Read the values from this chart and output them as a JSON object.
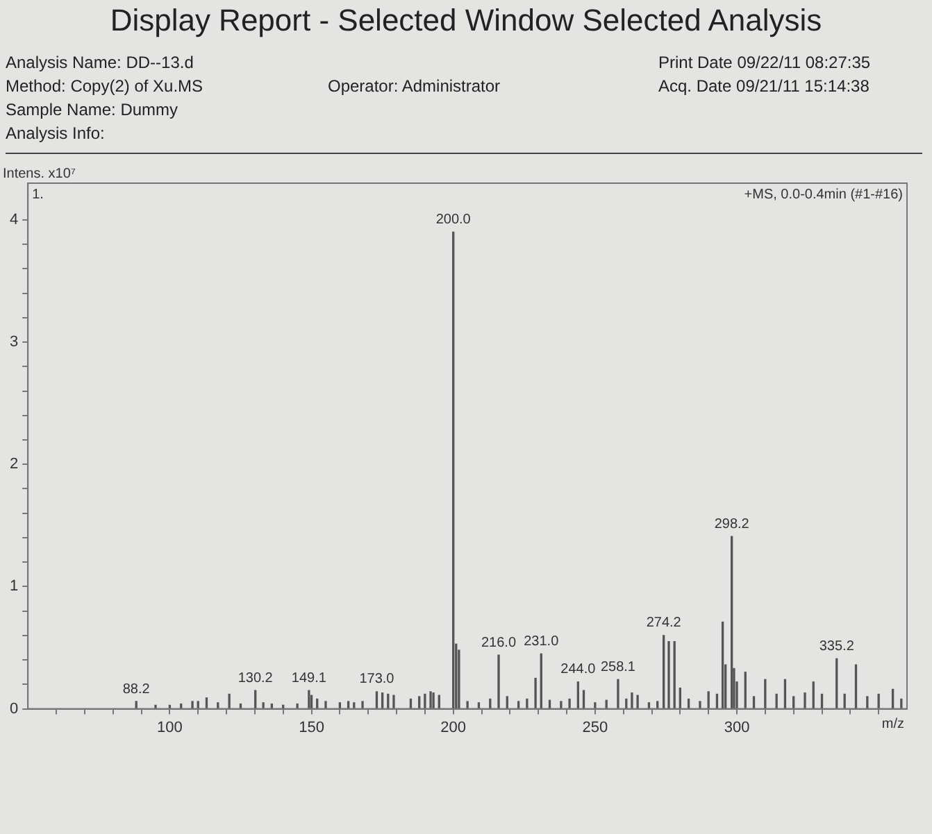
{
  "chart_data": {
    "type": "bar",
    "title": "Display Report - Selected Window Selected Analysis",
    "xlabel": "m/z",
    "ylabel": "Intens. x10⁷",
    "color": "#555555",
    "x": [
      88.2,
      95,
      100,
      104,
      108,
      110,
      113,
      117,
      121,
      125,
      130.2,
      133,
      136,
      140,
      145,
      149.1,
      150,
      152,
      155,
      160,
      163,
      165,
      168,
      173.0,
      175,
      177,
      179,
      185,
      188,
      190,
      192,
      193,
      195,
      200.0,
      201,
      202,
      205,
      209,
      213,
      216.0,
      219,
      223,
      226,
      229,
      231.0,
      234,
      238,
      241,
      244.0,
      246,
      250,
      254,
      258.1,
      261,
      263,
      265,
      269,
      272,
      274.2,
      276,
      278,
      280,
      283,
      287,
      290,
      293,
      295,
      296,
      298.2,
      299,
      300,
      303,
      306,
      310,
      314,
      317,
      320,
      324,
      327,
      330,
      335.2,
      338,
      342,
      346,
      350,
      355,
      358
    ],
    "values": [
      0.06,
      0.03,
      0.03,
      0.04,
      0.06,
      0.06,
      0.09,
      0.05,
      0.12,
      0.04,
      0.15,
      0.05,
      0.04,
      0.03,
      0.04,
      0.15,
      0.11,
      0.08,
      0.06,
      0.05,
      0.06,
      0.05,
      0.06,
      0.14,
      0.13,
      0.12,
      0.11,
      0.08,
      0.1,
      0.12,
      0.14,
      0.13,
      0.11,
      3.9,
      0.53,
      0.48,
      0.06,
      0.05,
      0.08,
      0.44,
      0.1,
      0.06,
      0.08,
      0.25,
      0.45,
      0.07,
      0.06,
      0.08,
      0.22,
      0.15,
      0.05,
      0.07,
      0.24,
      0.08,
      0.13,
      0.11,
      0.05,
      0.06,
      0.6,
      0.55,
      0.55,
      0.17,
      0.08,
      0.06,
      0.14,
      0.12,
      0.71,
      0.36,
      1.41,
      0.33,
      0.22,
      0.3,
      0.1,
      0.24,
      0.12,
      0.24,
      0.1,
      0.13,
      0.22,
      0.12,
      0.41,
      0.12,
      0.36,
      0.1,
      0.12,
      0.16,
      0.08
    ],
    "xlim": [
      50,
      360
    ],
    "xticks": [
      {
        "value": 60,
        "label": null
      },
      {
        "value": 70,
        "label": null
      },
      {
        "value": 80,
        "label": null
      },
      {
        "value": 90,
        "label": null
      },
      100,
      {
        "value": 110,
        "label": null
      },
      {
        "value": 120,
        "label": null
      },
      {
        "value": 130,
        "label": null
      },
      {
        "value": 140,
        "label": null
      },
      150,
      {
        "value": 160,
        "label": null
      },
      {
        "value": 170,
        "label": null
      },
      {
        "value": 180,
        "label": null
      },
      {
        "value": 190,
        "label": null
      },
      200,
      {
        "value": 210,
        "label": null
      },
      {
        "value": 220,
        "label": null
      },
      {
        "value": 230,
        "label": null
      },
      {
        "value": 240,
        "label": null
      },
      250,
      {
        "value": 260,
        "label": null
      },
      {
        "value": 270,
        "label": null
      },
      {
        "value": 280,
        "label": null
      },
      {
        "value": 290,
        "label": null
      },
      300,
      {
        "value": 310,
        "label": null
      },
      {
        "value": 320,
        "label": null
      },
      {
        "value": 330,
        "label": null
      },
      {
        "value": 340,
        "label": null
      },
      {
        "value": 350,
        "label": null
      }
    ],
    "ylim": [
      0,
      4.3
    ],
    "yticks": [
      0,
      {
        "value": 0.2,
        "label": null
      },
      {
        "value": 0.4,
        "label": null
      },
      {
        "value": 0.6,
        "label": null
      },
      {
        "value": 0.8,
        "label": null
      },
      1,
      {
        "value": 1.2,
        "label": null
      },
      {
        "value": 1.4,
        "label": null
      },
      {
        "value": 1.6,
        "label": null
      },
      {
        "value": 1.8,
        "label": null
      },
      2,
      {
        "value": 2.2,
        "label": null
      },
      {
        "value": 2.4,
        "label": null
      },
      {
        "value": 2.6,
        "label": null
      },
      {
        "value": 2.8,
        "label": null
      },
      3,
      {
        "value": 3.2,
        "label": null
      },
      {
        "value": 3.4,
        "label": null
      },
      {
        "value": 3.6,
        "label": null
      },
      {
        "value": 3.8,
        "label": null
      },
      4
    ],
    "grid": false,
    "legend": false,
    "annotations": [
      "Analysis Name: DD--13.d",
      "Method: Copy(2) of Xu.MS",
      "Sample Name: Dummy",
      "Analysis Info:",
      "Operator: Administrator",
      "Print Date 09/22/11 08:27:35",
      "Acq. Date 09/21/11 15:14:38",
      "+MS, 0.0-0.4min (#1-#16)",
      "1.",
      {
        "text": "88.2",
        "x": 88.2,
        "y": 0.06
      },
      {
        "text": "130.2",
        "x": 130.2,
        "y": 0.15
      },
      {
        "text": "149.1",
        "x": 149.1,
        "y": 0.15
      },
      {
        "text": "173.0",
        "x": 173.0,
        "y": 0.14
      },
      {
        "text": "200.0",
        "x": 200.0,
        "y": 3.9
      },
      {
        "text": "216.0",
        "x": 216.0,
        "y": 0.44
      },
      {
        "text": "231.0",
        "x": 231.0,
        "y": 0.45
      },
      {
        "text": "244.0",
        "x": 244.0,
        "y": 0.22
      },
      {
        "text": "258.1",
        "x": 258.1,
        "y": 0.24
      },
      {
        "text": "274.2",
        "x": 274.2,
        "y": 0.6
      },
      {
        "text": "298.2",
        "x": 298.2,
        "y": 1.41
      },
      {
        "text": "335.2",
        "x": 335.2,
        "y": 0.41
      }
    ]
  }
}
